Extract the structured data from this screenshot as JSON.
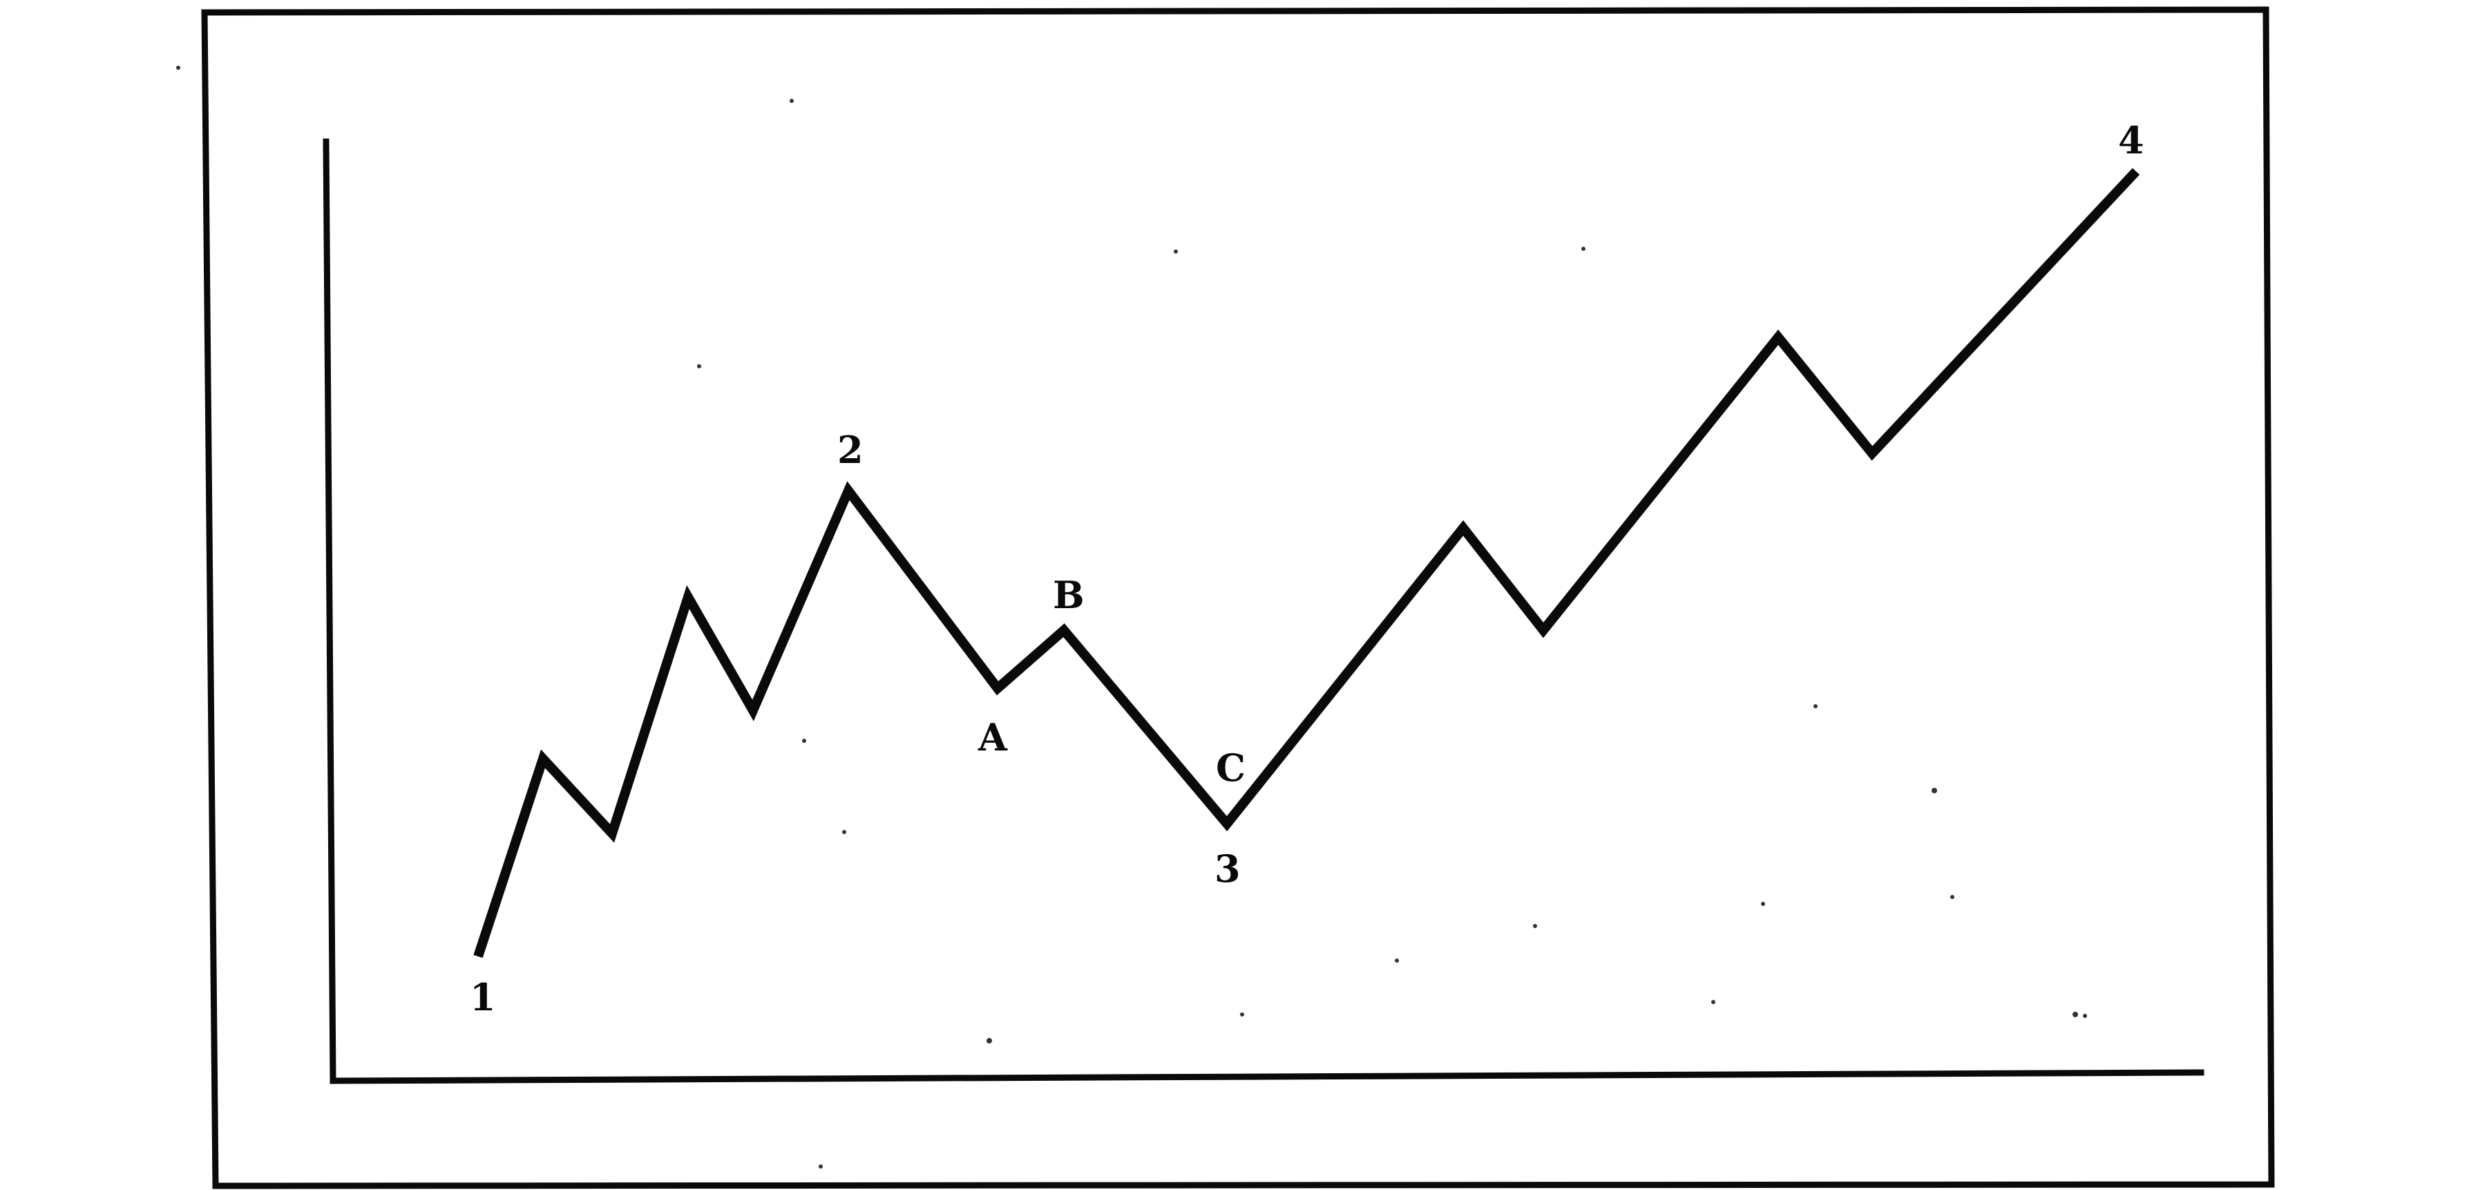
{
  "diagram": {
    "type": "wave-pattern",
    "labels": {
      "p1": "1",
      "p2": "2",
      "p3": "3",
      "p4": "4",
      "pa": "A",
      "pb": "B",
      "pc": "C"
    },
    "colors": {
      "ink": "#0a0a0a",
      "background": "#ffffff"
    }
  }
}
